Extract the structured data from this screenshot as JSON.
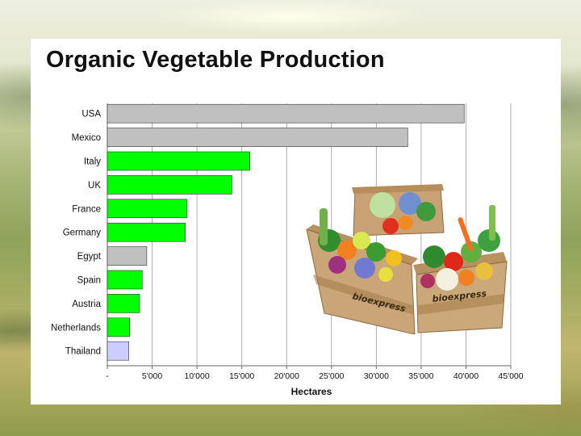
{
  "slide": {
    "title": "Organic Vegetable Production"
  },
  "colors": {
    "green": "#00ff00",
    "gray": "#c0c0c0",
    "lavender": "#ccccff",
    "bar_stroke": "#333333"
  },
  "image": {
    "brand_text": "bioexpress"
  },
  "chart_data": {
    "type": "bar",
    "orientation": "horizontal",
    "categories": [
      "USA",
      "Mexico",
      "Italy",
      "UK",
      "France",
      "Germany",
      "Egypt",
      "Spain",
      "Austria",
      "Netherlands",
      "Thailand"
    ],
    "values": [
      39800,
      33500,
      15900,
      13900,
      8900,
      8700,
      4400,
      3900,
      3600,
      2500,
      2400
    ],
    "bar_colors": [
      "gray",
      "gray",
      "green",
      "green",
      "green",
      "green",
      "gray",
      "green",
      "green",
      "green",
      "lavender"
    ],
    "xlabel": "Hectares",
    "ylabel": "",
    "xlim": [
      0,
      45000
    ],
    "xticks": [
      0,
      5000,
      10000,
      15000,
      20000,
      25000,
      30000,
      35000,
      40000,
      45000
    ],
    "xtick_labels": [
      "-",
      "5'000",
      "10'000",
      "15'000",
      "20'000",
      "25'000",
      "30'000",
      "35'000",
      "40'000",
      "45'000"
    ],
    "grid": "vertical"
  }
}
